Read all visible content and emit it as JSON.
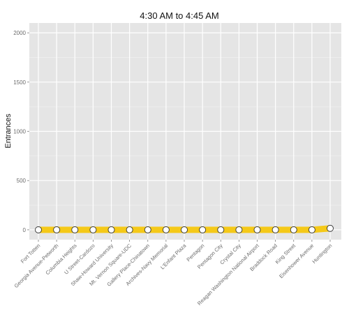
{
  "chart_data": {
    "type": "line",
    "title": "4:30 AM to 4:45 AM",
    "xlabel": "",
    "ylabel": "Entrances",
    "ylim": [
      -100,
      2100
    ],
    "yticks": [
      0,
      500,
      1000,
      1500,
      2000
    ],
    "grid": true,
    "legend": "none",
    "line_color": "#f5c918",
    "background_color": "#e5e5e5",
    "categories": [
      "Fort Totten",
      "Georgia Avenue-Petworth",
      "Columbia Heights",
      "U Street-Cardozo",
      "Shaw-Howard University",
      "Mt. Vernon Square-UDC",
      "Gallery Place-Chinatown",
      "Archives-Navy Memorial",
      "L'Enfant Plaza",
      "Pentagon",
      "Pentagon City",
      "Crystal City",
      "Reagan Washington National Airport",
      "Braddock Road",
      "King Street",
      "Eisenhower Avenue",
      "Huntington"
    ],
    "series": [
      {
        "values": [
          0,
          0,
          0,
          0,
          0,
          0,
          0,
          0,
          0,
          0,
          0,
          0,
          0,
          0,
          0,
          0,
          15
        ]
      }
    ]
  }
}
